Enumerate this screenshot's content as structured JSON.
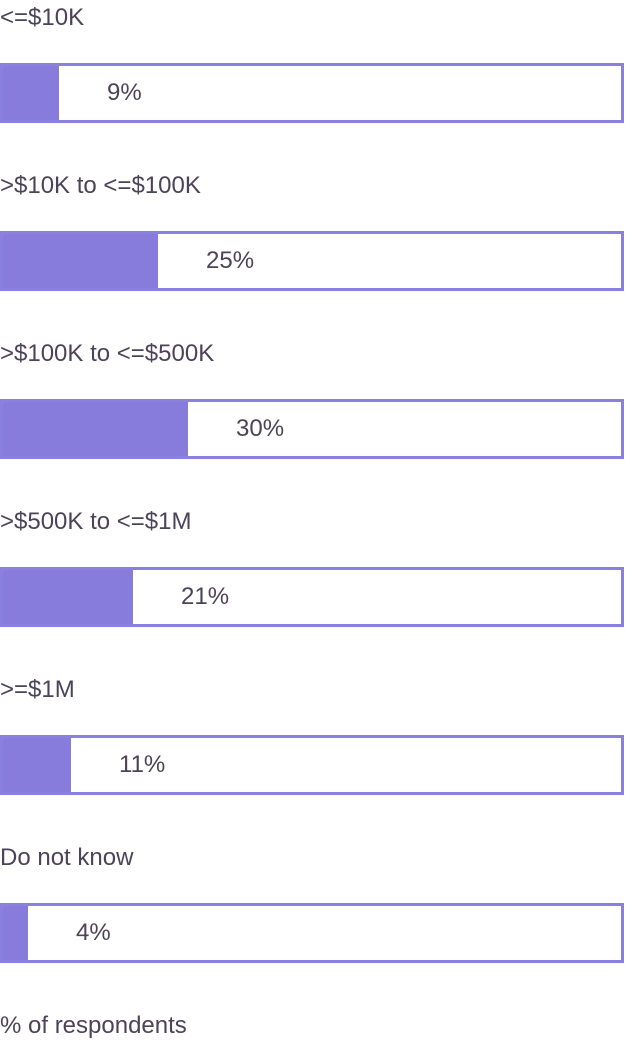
{
  "chart_data": {
    "type": "bar",
    "orientation": "horizontal",
    "categories": [
      "<=$10K",
      ">$10K to <=$100K",
      ">$100K to <=$500K",
      ">$500K to <=$1M",
      ">=$1M",
      "Do not know"
    ],
    "values": [
      9,
      25,
      30,
      21,
      11,
      4
    ],
    "value_labels": [
      "9%",
      "25%",
      "30%",
      "21%",
      "11%",
      "4%"
    ],
    "xlim": [
      0,
      100
    ],
    "footnote": "% of respondents",
    "fill_color": "#877cdc",
    "border_color": "#8a80dd",
    "text_color": "#4b4458"
  }
}
